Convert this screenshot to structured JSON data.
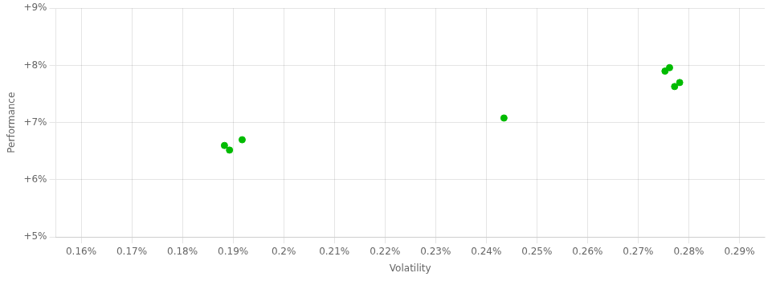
{
  "chart_data": {
    "type": "scatter",
    "x": [
      0.1883,
      0.1893,
      0.1918,
      0.2435,
      0.2753,
      0.2762,
      0.2772,
      0.2782
    ],
    "values": [
      6.6,
      6.52,
      6.7,
      7.08,
      7.9,
      7.96,
      7.63,
      7.7
    ],
    "color": "#00bb00",
    "xlabel": "Volatility",
    "ylabel": "Performance",
    "xlim": [
      0.155,
      0.295
    ],
    "ylim": [
      5.0,
      9.0
    ],
    "xticks": [
      {
        "value": 0.16,
        "label": "0.16%"
      },
      {
        "value": 0.17,
        "label": "0.17%"
      },
      {
        "value": 0.18,
        "label": "0.18%"
      },
      {
        "value": 0.19,
        "label": "0.19%"
      },
      {
        "value": 0.2,
        "label": "0.2%"
      },
      {
        "value": 0.21,
        "label": "0.21%"
      },
      {
        "value": 0.22,
        "label": "0.22%"
      },
      {
        "value": 0.23,
        "label": "0.23%"
      },
      {
        "value": 0.24,
        "label": "0.24%"
      },
      {
        "value": 0.25,
        "label": "0.25%"
      },
      {
        "value": 0.26,
        "label": "0.26%"
      },
      {
        "value": 0.27,
        "label": "0.27%"
      },
      {
        "value": 0.28,
        "label": "0.28%"
      },
      {
        "value": 0.29,
        "label": "0.29%"
      }
    ],
    "yticks": [
      {
        "value": 5.0,
        "label": "+5%"
      },
      {
        "value": 6.0,
        "label": "+6%"
      },
      {
        "value": 7.0,
        "label": "+7%"
      },
      {
        "value": 8.0,
        "label": "+8%"
      },
      {
        "value": 9.0,
        "label": "+9%"
      }
    ],
    "grid": true
  }
}
